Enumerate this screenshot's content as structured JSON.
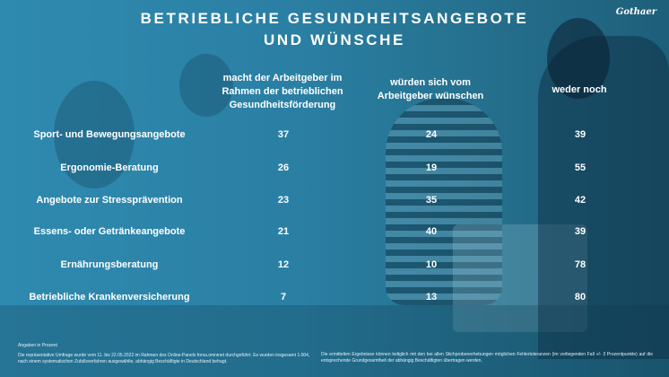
{
  "header": {
    "title_line1": "BETRIEBLICHE GESUNDHEITSANGEBOTE",
    "title_line2": "UND  WÜNSCHE",
    "logo": "Gothaer"
  },
  "chart_data": {
    "type": "table",
    "columns": [
      "macht der Arbeitgeber im Rahmen der betrieblichen Gesundheitsförderung",
      "würden sich vom Arbeitgeber wünschen",
      "weder noch"
    ],
    "rows": [
      {
        "label": "Sport- und Bewegungsangebote",
        "values": [
          "37",
          "24",
          "39"
        ]
      },
      {
        "label": "Ergonomie-Beratung",
        "values": [
          "26",
          "19",
          "55"
        ]
      },
      {
        "label": "Angebote zur Stressprävention",
        "values": [
          "23",
          "35",
          "42"
        ]
      },
      {
        "label": "Essens- oder Getränkeangebote",
        "values": [
          "21",
          "40",
          "39"
        ]
      },
      {
        "label": "Ernährungsberatung",
        "values": [
          "12",
          "10",
          "78"
        ]
      },
      {
        "label": "Betriebliche Krankenversicherung",
        "values": [
          "7",
          "13",
          "80"
        ]
      }
    ]
  },
  "footer": {
    "unit_note": "Angaben in Prozent",
    "survey_note": "Die repräsentative Umfrage wurde vom 11. bis 22.05.2022 im Rahmen des Online-Panels forsa.omninet durchgeführt. Es wurden insgesamt 1.004, nach einem systematischen Zufallsverfahren ausgewählte, abhängig Beschäftigte in Deutschland befragt.",
    "error_note": "Die ermittelten Ergebnisse können lediglich mit den bei allen Stichprobenerhebungen möglichen Fehlertoleranzen (im vorliegenden Fall +/- 3 Prozentpunkte) auf die entsprechende Grundgesamtheit der abhängig Beschäftigten übertragen werden."
  }
}
